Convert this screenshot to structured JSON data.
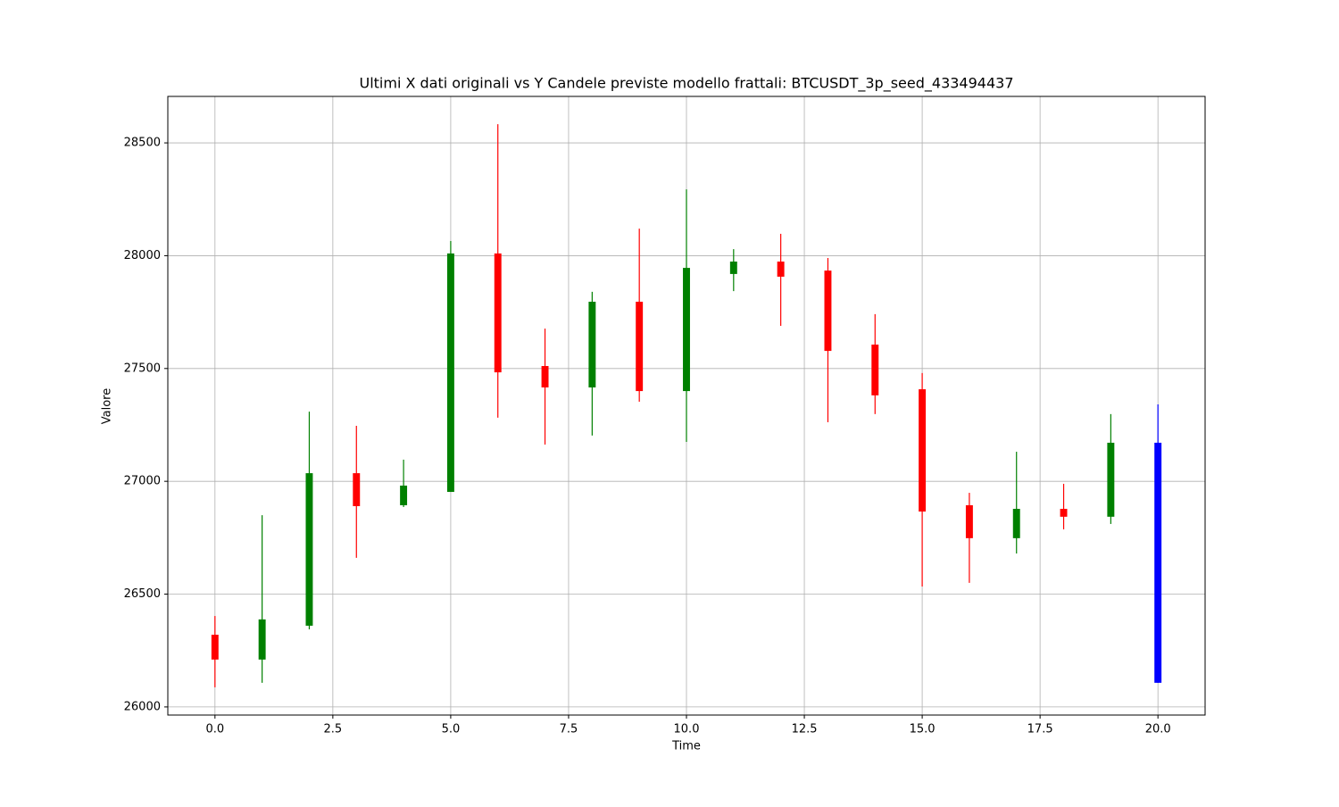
{
  "chart_data": {
    "type": "candlestick",
    "title": "Ultimi X dati originali vs Y Candele previste modello frattali: BTCUSDT_3p_seed_433494437",
    "xlabel": "Time",
    "ylabel": "Valore",
    "xlim": [
      -1,
      21
    ],
    "ylim": [
      25964,
      28706
    ],
    "xticks": [
      {
        "value": 0,
        "label": "0.0"
      },
      {
        "value": 2.5,
        "label": "2.5"
      },
      {
        "value": 5,
        "label": "5.0"
      },
      {
        "value": 7.5,
        "label": "7.5"
      },
      {
        "value": 10,
        "label": "10.0"
      },
      {
        "value": 12.5,
        "label": "12.5"
      },
      {
        "value": 15,
        "label": "15.0"
      },
      {
        "value": 17.5,
        "label": "17.5"
      },
      {
        "value": 20,
        "label": "20.0"
      }
    ],
    "yticks": [
      26000,
      26500,
      27000,
      27500,
      28000,
      28500
    ],
    "grid": true,
    "series": [
      {
        "up_color": "green",
        "down_color": "red",
        "x": [
          0,
          1,
          2,
          3,
          4,
          5,
          6,
          7,
          8,
          9,
          10,
          11,
          12,
          13,
          14,
          15,
          16,
          17,
          18,
          19
        ],
        "open": [
          26320,
          26210,
          26360,
          27036,
          26894,
          26953,
          28010,
          27511,
          27416,
          27796,
          27400,
          27919,
          27974,
          27934,
          27606,
          27408,
          26894,
          26748,
          26878,
          26843
        ],
        "close": [
          26210,
          26388,
          27036,
          26890,
          26981,
          28010,
          27483,
          27416,
          27796,
          27400,
          27946,
          27974,
          27907,
          27578,
          27381,
          26866,
          26748,
          26878,
          26843,
          27171
        ],
        "high": [
          26403,
          26850,
          27309,
          27246,
          27096,
          28065,
          28583,
          27677,
          27840,
          28120,
          28294,
          28029,
          28097,
          27990,
          27741,
          27480,
          26949,
          27131,
          26989,
          27298
        ],
        "low": [
          26087,
          26107,
          26344,
          26661,
          26886,
          26953,
          27282,
          27163,
          27203,
          27353,
          27175,
          27843,
          27689,
          27262,
          27298,
          26534,
          26550,
          26680,
          26787,
          26811
        ]
      },
      {
        "color": "blue",
        "x": [
          20
        ],
        "open": [
          27171
        ],
        "close": [
          26107
        ],
        "high": [
          27341
        ],
        "low": [
          26107
        ]
      }
    ]
  }
}
